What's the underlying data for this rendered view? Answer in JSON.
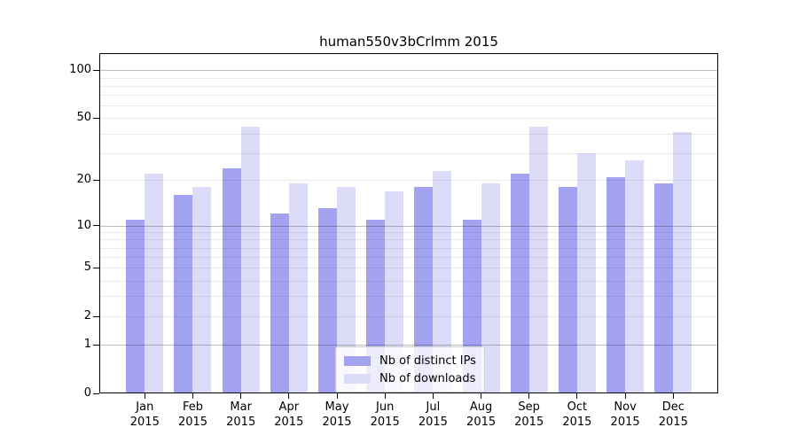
{
  "figure": {
    "title": "human550v3bCrlmm 2015"
  },
  "chart_data": {
    "type": "bar",
    "title": "human550v3bCrlmm 2015",
    "categories": [
      "Jan",
      "Feb",
      "Mar",
      "Apr",
      "May",
      "Jun",
      "Jul",
      "Aug",
      "Sep",
      "Oct",
      "Nov",
      "Dec"
    ],
    "category_year": "2015",
    "series": [
      {
        "name": "Nb of distinct IPs",
        "key": "distinct-ips",
        "color": "#a2a2f0",
        "values": [
          11,
          16,
          24,
          12,
          13,
          11,
          18,
          11,
          22,
          18,
          21,
          19
        ]
      },
      {
        "name": "Nb of downloads",
        "key": "downloads",
        "color": "#dcdcf8",
        "values": [
          22,
          18,
          44,
          19,
          18,
          17,
          23,
          19,
          44,
          30,
          27,
          41
        ]
      }
    ],
    "yscale": "log10(1+x)",
    "yticks": [
      0,
      1,
      2,
      5,
      10,
      20,
      50,
      100
    ],
    "ylim": [
      0,
      128
    ],
    "xlabel": "",
    "ylabel": "",
    "grid": "on",
    "grid_major_at": [
      1,
      10,
      100
    ],
    "grid_minor_at": [
      2,
      3,
      4,
      5,
      6,
      7,
      8,
      9,
      20,
      30,
      40,
      50,
      60,
      70,
      80,
      90
    ],
    "legend_position": "lower-center"
  },
  "colors": {
    "background": "#ffffff",
    "axis": "#000000",
    "text": "#000000",
    "grid_major": "rgba(0,0,0,0.25)",
    "grid_minor": "rgba(0,0,0,0.08)",
    "bar_distinct_ips": "#a2a2f0",
    "bar_downloads": "#dcdcf8",
    "legend_border": "#cccccc",
    "legend_background": "rgba(255,255,255,0.8)"
  }
}
